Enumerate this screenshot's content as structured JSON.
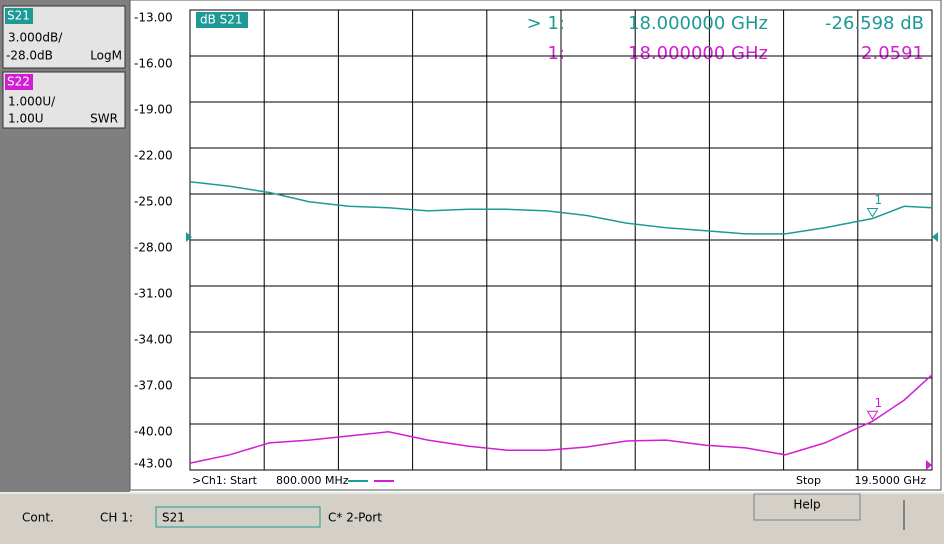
{
  "ui": {
    "traces": [
      {
        "name": "S21",
        "scale": "3.000dB/",
        "ref": "-28.0dB",
        "format": "LogM"
      },
      {
        "name": "S22",
        "scale": "1.000U/",
        "ref": "1.00U",
        "format": "SWR"
      }
    ],
    "plot_label": "dB S21",
    "marker_readouts": [
      {
        "marker": "> 1:",
        "freq": "18.000000 GHz",
        "value": "-26.598 dB"
      },
      {
        "marker": "1:",
        "freq": "18.000000 GHz",
        "value": "2.0591"
      }
    ],
    "marker_tag": "1",
    "start_label": ">Ch1: Start",
    "start_value": "800.000 MHz",
    "stop_label": "Stop",
    "stop_value": "19.5000 GHz",
    "status": {
      "mode": "Cont.",
      "channel": "CH 1:",
      "measurement": "S21",
      "cal": "C* 2-Port",
      "button": "Help"
    }
  },
  "chart_data": {
    "type": "line",
    "x": [
      0.8,
      1.8,
      2.8,
      3.8,
      4.8,
      5.8,
      6.8,
      7.8,
      8.8,
      9.8,
      10.8,
      11.8,
      12.8,
      13.8,
      14.8,
      15.8,
      16.8,
      18.0,
      18.8,
      19.5
    ],
    "xlim": [
      0.8,
      19.5
    ],
    "ylim": [
      -43,
      -13
    ],
    "yticks": [
      {
        "value": -13,
        "label": "-13.00"
      },
      {
        "value": -16,
        "label": "-16.00"
      },
      {
        "value": -19,
        "label": "-19.00"
      },
      {
        "value": -22,
        "label": "-22.00"
      },
      {
        "value": -25,
        "label": "-25.00"
      },
      {
        "value": -28,
        "label": "-28.00"
      },
      {
        "value": -31,
        "label": "-31.00"
      },
      {
        "value": -34,
        "label": "-34.00"
      },
      {
        "value": -37,
        "label": "-37.00"
      },
      {
        "value": -40,
        "label": "-40.00"
      },
      {
        "value": -43,
        "label": "-43.00"
      }
    ],
    "y2lim": [
      1,
      11
    ],
    "grid": true,
    "series": [
      {
        "name": "S21",
        "color": "#1e9a96",
        "values": [
          -24.2,
          -24.5,
          -24.9,
          -25.5,
          -25.8,
          -25.9,
          -26.1,
          -26.0,
          -26.0,
          -26.1,
          -26.4,
          -26.9,
          -27.2,
          -27.4,
          -27.6,
          -27.6,
          -27.2,
          -26.598,
          -25.8,
          -25.9
        ]
      },
      {
        "name": "S22",
        "color": "#d21ed2",
        "axis": "y2",
        "values": [
          1.15,
          1.33,
          1.59,
          1.65,
          1.74,
          1.83,
          1.65,
          1.52,
          1.43,
          1.43,
          1.5,
          1.63,
          1.65,
          1.54,
          1.48,
          1.33,
          1.59,
          2.0591,
          2.52,
          3.07
        ]
      }
    ]
  }
}
